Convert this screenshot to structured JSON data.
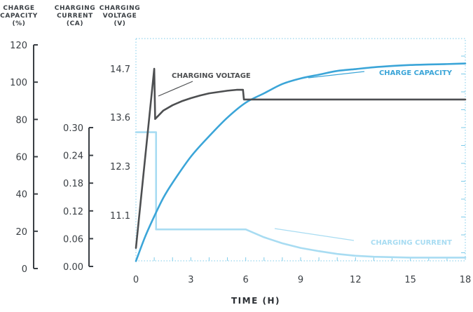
{
  "colors": {
    "voltage": "#4d4f51",
    "capacity": "#3ba5d8",
    "current": "#a8dcf2",
    "axis": "#3a3f44",
    "frame": "#7ccbea"
  },
  "chart_data": {
    "type": "line",
    "axes": {
      "capacity": {
        "title_lines": [
          "CHARGE",
          "CAPACITY",
          "(%)"
        ],
        "ticks": [
          "0",
          "20",
          "40",
          "60",
          "80",
          "100",
          "120"
        ],
        "range": [
          0,
          120
        ]
      },
      "current": {
        "title_lines": [
          "CHARGING",
          "CURRENT",
          "(CA)"
        ],
        "ticks": [
          "0.00",
          "0.06",
          "0.12",
          "0.18",
          "0.24",
          "0.30"
        ],
        "range": [
          0,
          0.3
        ]
      },
      "voltage": {
        "title_lines": [
          "CHARGING",
          "VOLTAGE",
          "(V)"
        ],
        "ticks": [
          "11.1",
          "12.3",
          "13.6",
          "14.7"
        ]
      },
      "x": {
        "title": "TIME (H)",
        "ticks": [
          "0",
          "3",
          "6",
          "9",
          "12",
          "15",
          "18"
        ],
        "range": [
          0,
          18
        ]
      }
    },
    "series": [
      {
        "name": "CHARGING VOLTAGE",
        "axis": "voltage",
        "x": [
          0,
          1.0,
          1.05,
          1.5,
          2,
          2.5,
          3,
          3.5,
          4,
          4.5,
          5,
          5.5,
          5.85,
          5.9,
          18
        ],
        "y": [
          10.3,
          14.7,
          13.55,
          13.75,
          13.87,
          13.96,
          14.03,
          14.09,
          14.14,
          14.17,
          14.2,
          14.22,
          14.22,
          14.0,
          14.0
        ]
      },
      {
        "name": "CHARGE CAPACITY",
        "axis": "capacity",
        "x": [
          0,
          0.5,
          1,
          1.5,
          2,
          3,
          4,
          5,
          6,
          7,
          8,
          9,
          10,
          11,
          12,
          13,
          14,
          15,
          16,
          17,
          18
        ],
        "y": [
          4,
          17,
          28,
          38,
          46,
          60,
          71,
          81,
          89,
          94,
          99,
          102,
          104,
          106,
          107,
          108,
          108.7,
          109.2,
          109.5,
          109.7,
          110
        ]
      },
      {
        "name": "CHARGING CURRENT",
        "axis": "current",
        "x": [
          0,
          1.1,
          1.1,
          6,
          7,
          8,
          9,
          10,
          11,
          12,
          13,
          14,
          15,
          16,
          17,
          18
        ],
        "y": [
          0.29,
          0.29,
          0.08,
          0.08,
          0.063,
          0.05,
          0.04,
          0.033,
          0.027,
          0.023,
          0.021,
          0.02,
          0.019,
          0.019,
          0.019,
          0.019
        ]
      }
    ],
    "annotations": [
      {
        "text": "CHARGING VOLTAGE",
        "series": "CHARGING VOLTAGE"
      },
      {
        "text": "CHARGE CAPACITY",
        "series": "CHARGE CAPACITY"
      },
      {
        "text": "CHARGING CURRENT",
        "series": "CHARGING CURRENT"
      }
    ]
  }
}
